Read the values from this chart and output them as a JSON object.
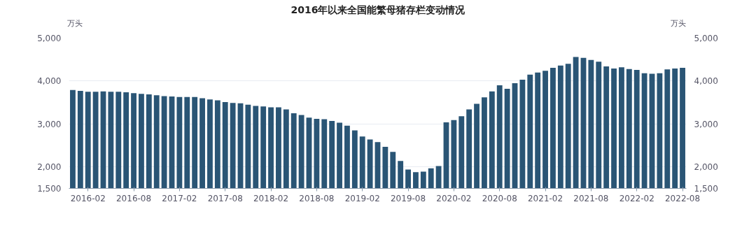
{
  "chart_data": {
    "type": "bar",
    "title": "2016年以来全国能繁母猪存栏变动情况",
    "ylabel": "万头",
    "y2label": "万头",
    "categories": [
      null,
      null,
      "2016-02",
      null,
      null,
      null,
      null,
      null,
      "2016-08",
      null,
      null,
      null,
      null,
      null,
      "2017-02",
      null,
      null,
      null,
      null,
      null,
      "2017-08",
      null,
      null,
      null,
      null,
      null,
      "2018-02",
      null,
      null,
      null,
      null,
      null,
      "2018-08",
      null,
      null,
      null,
      null,
      null,
      "2019-02",
      null,
      null,
      null,
      null,
      null,
      "2019-08",
      null,
      null,
      null,
      null,
      null,
      "2020-02",
      null,
      null,
      null,
      null,
      null,
      "2020-08",
      null,
      null,
      null,
      null,
      null,
      "2021-02",
      null,
      null,
      null,
      null,
      null,
      "2021-08",
      null,
      null,
      null,
      null,
      null,
      "2022-02",
      null,
      null,
      null,
      null,
      null,
      "2022-08"
    ],
    "series": [
      {
        "color": "#2a5575",
        "values": [
          3790,
          3770,
          3750,
          3750,
          3760,
          3750,
          3750,
          3740,
          3720,
          3700,
          3690,
          3670,
          3650,
          3640,
          3630,
          3630,
          3630,
          3600,
          3570,
          3550,
          3510,
          3490,
          3480,
          3450,
          3420,
          3410,
          3390,
          3390,
          3340,
          3250,
          3210,
          3150,
          3120,
          3110,
          3070,
          3030,
          2960,
          2850,
          2710,
          2640,
          2580,
          2470,
          2350,
          2140,
          1940,
          1880,
          1890,
          1970,
          2020,
          3040,
          3090,
          3180,
          3340,
          3470,
          3620,
          3760,
          3900,
          3820,
          3950,
          4030,
          4150,
          4200,
          4240,
          4310,
          4360,
          4400,
          4560,
          4540,
          4490,
          4450,
          4340,
          4290,
          4320,
          4280,
          4260,
          4180,
          4170,
          4180,
          4270,
          4290,
          4310
        ]
      }
    ],
    "ylim": [
      1500,
      5000
    ],
    "yticks": [
      {
        "value": 1500,
        "label": "1,500"
      },
      {
        "value": 2000,
        "label": "2,000"
      },
      {
        "value": 3000,
        "label": "3,000"
      },
      {
        "value": 4000,
        "label": "4,000"
      },
      {
        "value": 5000,
        "label": "5,000"
      }
    ],
    "y2lim": [
      1500,
      5000
    ],
    "y2ticks": [
      {
        "value": 1500,
        "label": "1,500"
      },
      {
        "value": 2000,
        "label": "2,000"
      },
      {
        "value": 3000,
        "label": "3,000"
      },
      {
        "value": 4000,
        "label": "4,000"
      },
      {
        "value": 5000,
        "label": "5,000"
      }
    ],
    "grid": "y"
  }
}
